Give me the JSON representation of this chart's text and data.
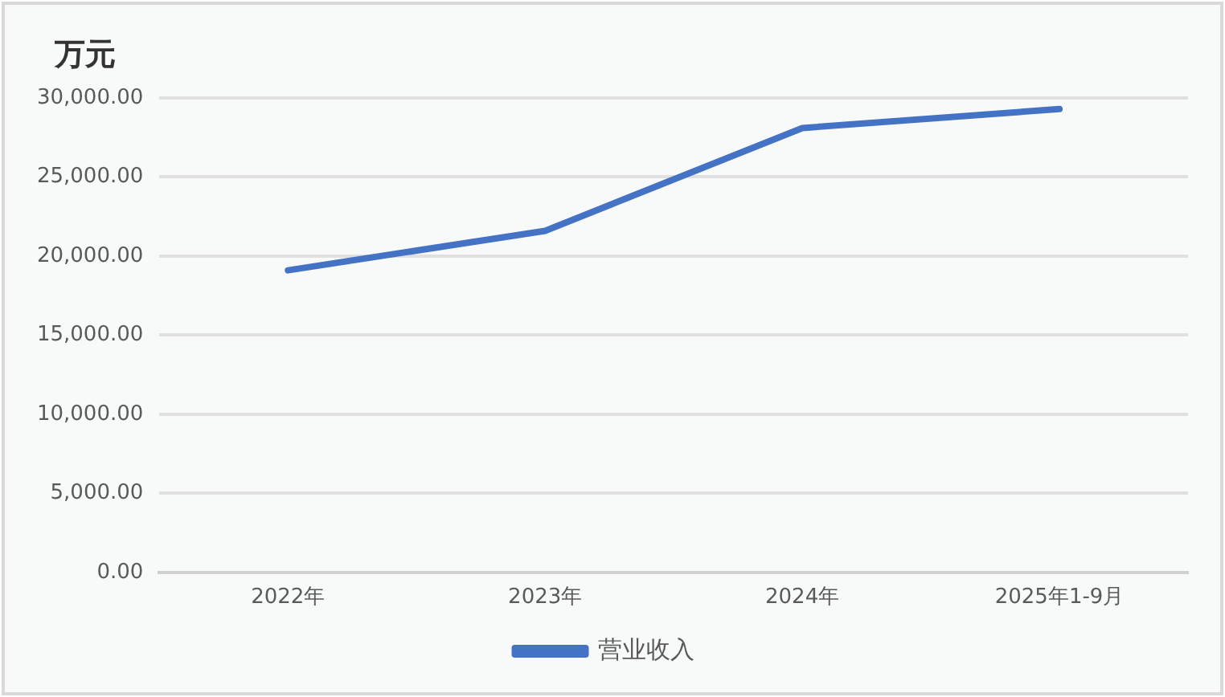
{
  "chart_data": {
    "type": "line",
    "ylabel": "万元",
    "categories": [
      "2022年",
      "2023年",
      "2024年",
      "2025年1-9月"
    ],
    "series": [
      {
        "name": "营业收入",
        "color": "#4472c4",
        "values": [
          19100,
          21600,
          28100,
          29300
        ]
      }
    ],
    "ylim": [
      0,
      30000
    ],
    "yticks": [
      {
        "value": 0,
        "label": "0.00"
      },
      {
        "value": 5000,
        "label": "5,000.00"
      },
      {
        "value": 10000,
        "label": "10,000.00"
      },
      {
        "value": 15000,
        "label": "15,000.00"
      },
      {
        "value": 20000,
        "label": "20,000.00"
      },
      {
        "value": 25000,
        "label": "25,000.00"
      },
      {
        "value": 30000,
        "label": "30,000.00"
      }
    ],
    "grid": "y",
    "legend": "bottom",
    "marker": "none",
    "line_style": "solid"
  }
}
